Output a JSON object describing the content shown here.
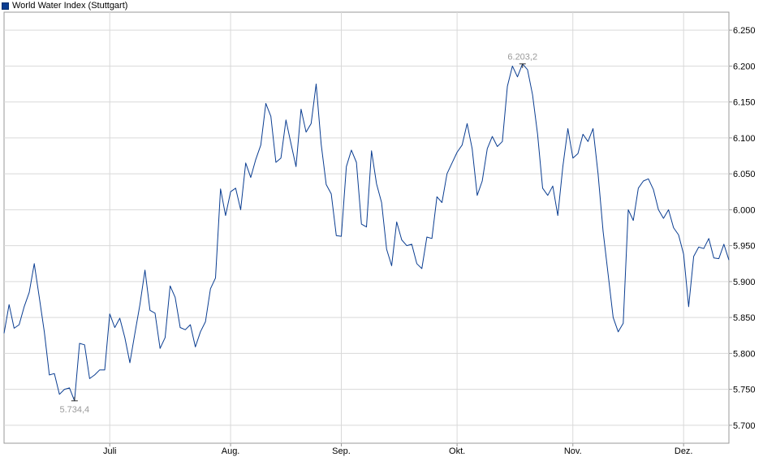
{
  "legend": {
    "label": "World Water Index (Stuttgart)",
    "color": "#0a3d91"
  },
  "chart_data": {
    "type": "line",
    "series": [
      {
        "name": "World Water Index (Stuttgart)",
        "color": "#0a3d91",
        "values": [
          5.828,
          5.868,
          5.835,
          5.84,
          5.865,
          5.885,
          5.925,
          5.878,
          5.83,
          5.77,
          5.772,
          5.743,
          5.75,
          5.752,
          5.734,
          5.814,
          5.812,
          5.765,
          5.77,
          5.777,
          5.777,
          5.855,
          5.836,
          5.849,
          5.822,
          5.787,
          5.828,
          5.868,
          5.916,
          5.86,
          5.856,
          5.807,
          5.822,
          5.894,
          5.878,
          5.836,
          5.833,
          5.84,
          5.809,
          5.83,
          5.844,
          5.89,
          5.905,
          6.029,
          5.992,
          6.025,
          6.03,
          6.0,
          6.065,
          6.045,
          6.07,
          6.09,
          6.148,
          6.13,
          6.066,
          6.072,
          6.125,
          6.092,
          6.06,
          6.14,
          6.108,
          6.12,
          6.175,
          6.091,
          6.035,
          6.022,
          5.964,
          5.963,
          6.06,
          6.083,
          6.066,
          5.98,
          5.976,
          6.082,
          6.036,
          6.01,
          5.945,
          5.922,
          5.983,
          5.958,
          5.95,
          5.952,
          5.925,
          5.918,
          5.962,
          5.96,
          6.018,
          6.01,
          6.05,
          6.065,
          6.08,
          6.09,
          6.12,
          6.085,
          6.02,
          6.04,
          6.085,
          6.102,
          6.088,
          6.095,
          6.172,
          6.2,
          6.185,
          6.203,
          6.195,
          6.16,
          6.105,
          6.03,
          6.02,
          6.033,
          5.992,
          6.06,
          6.113,
          6.072,
          6.078,
          6.105,
          6.095,
          6.113,
          6.05,
          5.97,
          5.91,
          5.85,
          5.83,
          5.842,
          6.0,
          5.985,
          6.03,
          6.04,
          6.043,
          6.028,
          6.0,
          5.988,
          6.0,
          5.975,
          5.965,
          5.938,
          5.865,
          5.935,
          5.948,
          5.946,
          5.96,
          5.933,
          5.932,
          5.952,
          5.93
        ]
      }
    ],
    "xlabels": [
      "Juli",
      "Aug.",
      "Sep.",
      "Okt.",
      "Nov.",
      "Dez."
    ],
    "xlabel_index": [
      21,
      45,
      67,
      90,
      113,
      135
    ],
    "yticks": [
      5700,
      5750,
      5800,
      5850,
      5900,
      5950,
      6000,
      6050,
      6100,
      6150,
      6200,
      6250
    ],
    "ytick_labels": [
      "5.700",
      "5.750",
      "5.800",
      "5.850",
      "5.900",
      "5.950",
      "6.000",
      "6.050",
      "6.100",
      "6.150",
      "6.200",
      "6.250"
    ],
    "ylim": [
      5.675,
      6.275
    ],
    "grid": true,
    "annotations": [
      {
        "label": "5.734,4",
        "index": 14,
        "value": 5.734
      },
      {
        "label": "6.203,2",
        "index": 103,
        "value": 6.203
      }
    ],
    "axis_color": "#999999",
    "grid_color": "#d9d9d9"
  }
}
